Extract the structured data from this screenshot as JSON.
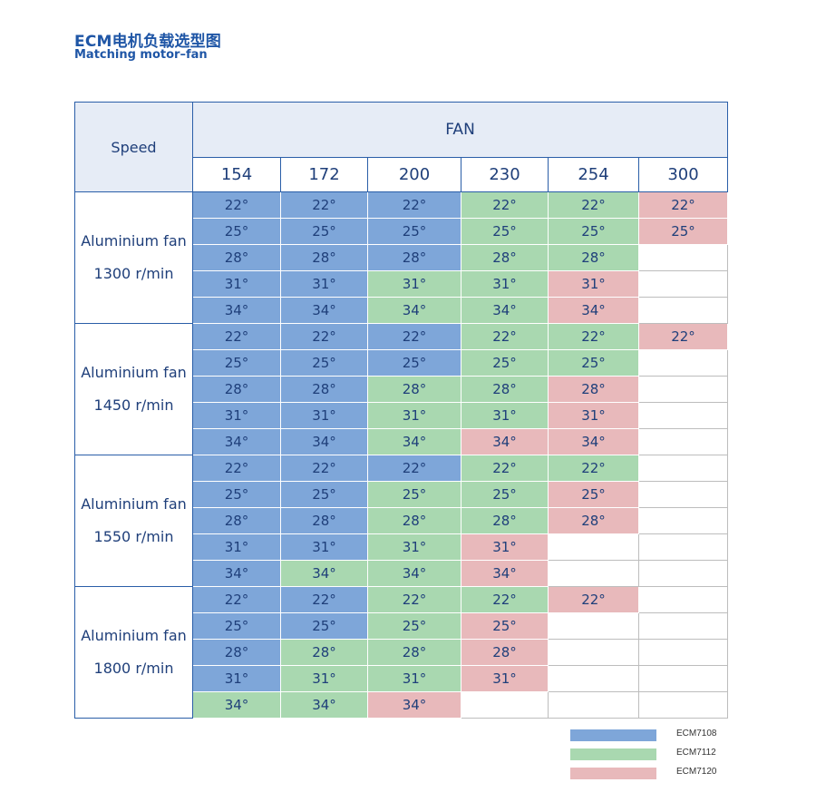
{
  "title": {
    "cn": "ECM电机负载选型图",
    "en": "Matching motor–fan"
  },
  "table": {
    "speed_header": "Speed",
    "fan_header": "FAN",
    "fan_sizes": [
      "154",
      "172",
      "200",
      "230",
      "254",
      "300"
    ],
    "groups": [
      {
        "label1": "Aluminium fan",
        "label2": "1300 r/min",
        "rows": [
          {
            "values": [
              "22°",
              "22°",
              "22°",
              "22°",
              "22°",
              "22°"
            ],
            "motors": [
              1,
              1,
              1,
              2,
              2,
              3
            ]
          },
          {
            "values": [
              "25°",
              "25°",
              "25°",
              "25°",
              "25°",
              "25°"
            ],
            "motors": [
              1,
              1,
              1,
              2,
              2,
              3
            ]
          },
          {
            "values": [
              "28°",
              "28°",
              "28°",
              "28°",
              "28°",
              ""
            ],
            "motors": [
              1,
              1,
              1,
              2,
              2,
              0
            ]
          },
          {
            "values": [
              "31°",
              "31°",
              "31°",
              "31°",
              "31°",
              ""
            ],
            "motors": [
              1,
              1,
              2,
              2,
              3,
              0
            ]
          },
          {
            "values": [
              "34°",
              "34°",
              "34°",
              "34°",
              "34°",
              ""
            ],
            "motors": [
              1,
              1,
              2,
              2,
              3,
              0
            ]
          }
        ]
      },
      {
        "label1": "Aluminium fan",
        "label2": "1450 r/min",
        "rows": [
          {
            "values": [
              "22°",
              "22°",
              "22°",
              "22°",
              "22°",
              "22°"
            ],
            "motors": [
              1,
              1,
              1,
              2,
              2,
              3
            ]
          },
          {
            "values": [
              "25°",
              "25°",
              "25°",
              "25°",
              "25°",
              ""
            ],
            "motors": [
              1,
              1,
              1,
              2,
              2,
              0
            ]
          },
          {
            "values": [
              "28°",
              "28°",
              "28°",
              "28°",
              "28°",
              ""
            ],
            "motors": [
              1,
              1,
              2,
              2,
              3,
              0
            ]
          },
          {
            "values": [
              "31°",
              "31°",
              "31°",
              "31°",
              "31°",
              ""
            ],
            "motors": [
              1,
              1,
              2,
              2,
              3,
              0
            ]
          },
          {
            "values": [
              "34°",
              "34°",
              "34°",
              "34°",
              "34°",
              ""
            ],
            "motors": [
              1,
              1,
              2,
              3,
              3,
              0
            ]
          }
        ]
      },
      {
        "label1": "Aluminium fan",
        "label2": "1550 r/min",
        "rows": [
          {
            "values": [
              "22°",
              "22°",
              "22°",
              "22°",
              "22°",
              ""
            ],
            "motors": [
              1,
              1,
              1,
              2,
              2,
              0
            ]
          },
          {
            "values": [
              "25°",
              "25°",
              "25°",
              "25°",
              "25°",
              ""
            ],
            "motors": [
              1,
              1,
              2,
              2,
              3,
              0
            ]
          },
          {
            "values": [
              "28°",
              "28°",
              "28°",
              "28°",
              "28°",
              ""
            ],
            "motors": [
              1,
              1,
              2,
              2,
              3,
              0
            ]
          },
          {
            "values": [
              "31°",
              "31°",
              "31°",
              "31°",
              "",
              ""
            ],
            "motors": [
              1,
              1,
              2,
              3,
              0,
              0
            ]
          },
          {
            "values": [
              "34°",
              "34°",
              "34°",
              "34°",
              "",
              ""
            ],
            "motors": [
              1,
              2,
              2,
              3,
              0,
              0
            ]
          }
        ]
      },
      {
        "label1": "Aluminium fan",
        "label2": "1800 r/min",
        "rows": [
          {
            "values": [
              "22°",
              "22°",
              "22°",
              "22°",
              "22°",
              ""
            ],
            "motors": [
              1,
              1,
              2,
              2,
              3,
              0
            ]
          },
          {
            "values": [
              "25°",
              "25°",
              "25°",
              "25°",
              "",
              ""
            ],
            "motors": [
              1,
              1,
              2,
              3,
              0,
              0
            ]
          },
          {
            "values": [
              "28°",
              "28°",
              "28°",
              "28°",
              "",
              ""
            ],
            "motors": [
              1,
              2,
              2,
              3,
              0,
              0
            ]
          },
          {
            "values": [
              "31°",
              "31°",
              "31°",
              "31°",
              "",
              ""
            ],
            "motors": [
              1,
              2,
              2,
              3,
              0,
              0
            ]
          },
          {
            "values": [
              "34°",
              "34°",
              "34°",
              "",
              "",
              ""
            ],
            "motors": [
              2,
              2,
              3,
              0,
              0,
              0
            ]
          }
        ]
      }
    ]
  },
  "legend": [
    {
      "label": "ECM7108",
      "color": "#7ea6d9"
    },
    {
      "label": "ECM7112",
      "color": "#a9d8b0"
    },
    {
      "label": "ECM7120",
      "color": "#e8b9bb"
    }
  ]
}
